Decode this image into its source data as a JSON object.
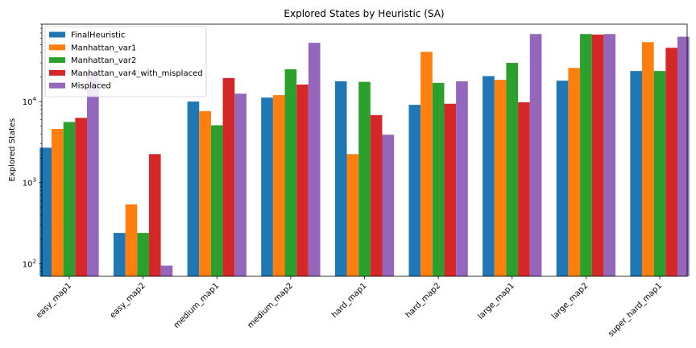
{
  "chart_data": {
    "type": "bar",
    "title": "Explored States by Heuristic (SA)",
    "xlabel": "",
    "ylabel": "Explored States",
    "yscale": "log",
    "ylim": [
      70,
      90000
    ],
    "yticks": [
      {
        "value": 100,
        "base": "10",
        "exp": "2"
      },
      {
        "value": 1000,
        "base": "10",
        "exp": "3"
      },
      {
        "value": 10000,
        "base": "10",
        "exp": "4"
      }
    ],
    "legend_position": "top-left",
    "categories": [
      "easy_map1",
      "easy_map2",
      "medium_map1",
      "medium_map2",
      "hard_map1",
      "hard_map2",
      "large_map1",
      "large_map2",
      "super_hard_map1"
    ],
    "series": [
      {
        "name": "FinalHeuristic",
        "color": "#1f77b4",
        "values": [
          2700,
          240,
          10000,
          11200,
          17800,
          9100,
          20600,
          18100,
          23800
        ]
      },
      {
        "name": "Manhattan_var1",
        "color": "#ff7f0e",
        "values": [
          4600,
          540,
          7600,
          12000,
          2250,
          41000,
          18500,
          26000,
          54000
        ]
      },
      {
        "name": "Manhattan_var2",
        "color": "#2ca02c",
        "values": [
          5600,
          240,
          5100,
          25000,
          17500,
          17000,
          30000,
          68000,
          23800
        ]
      },
      {
        "name": "Manhattan_var4_with_misplaced",
        "color": "#d62728",
        "values": [
          6300,
          2250,
          19500,
          16200,
          6800,
          9400,
          9800,
          67000,
          46000
        ]
      },
      {
        "name": "Misplaced",
        "color": "#9467bd",
        "values": [
          23000,
          95,
          12500,
          53000,
          3900,
          17800,
          68000,
          68000,
          63000
        ]
      }
    ]
  }
}
